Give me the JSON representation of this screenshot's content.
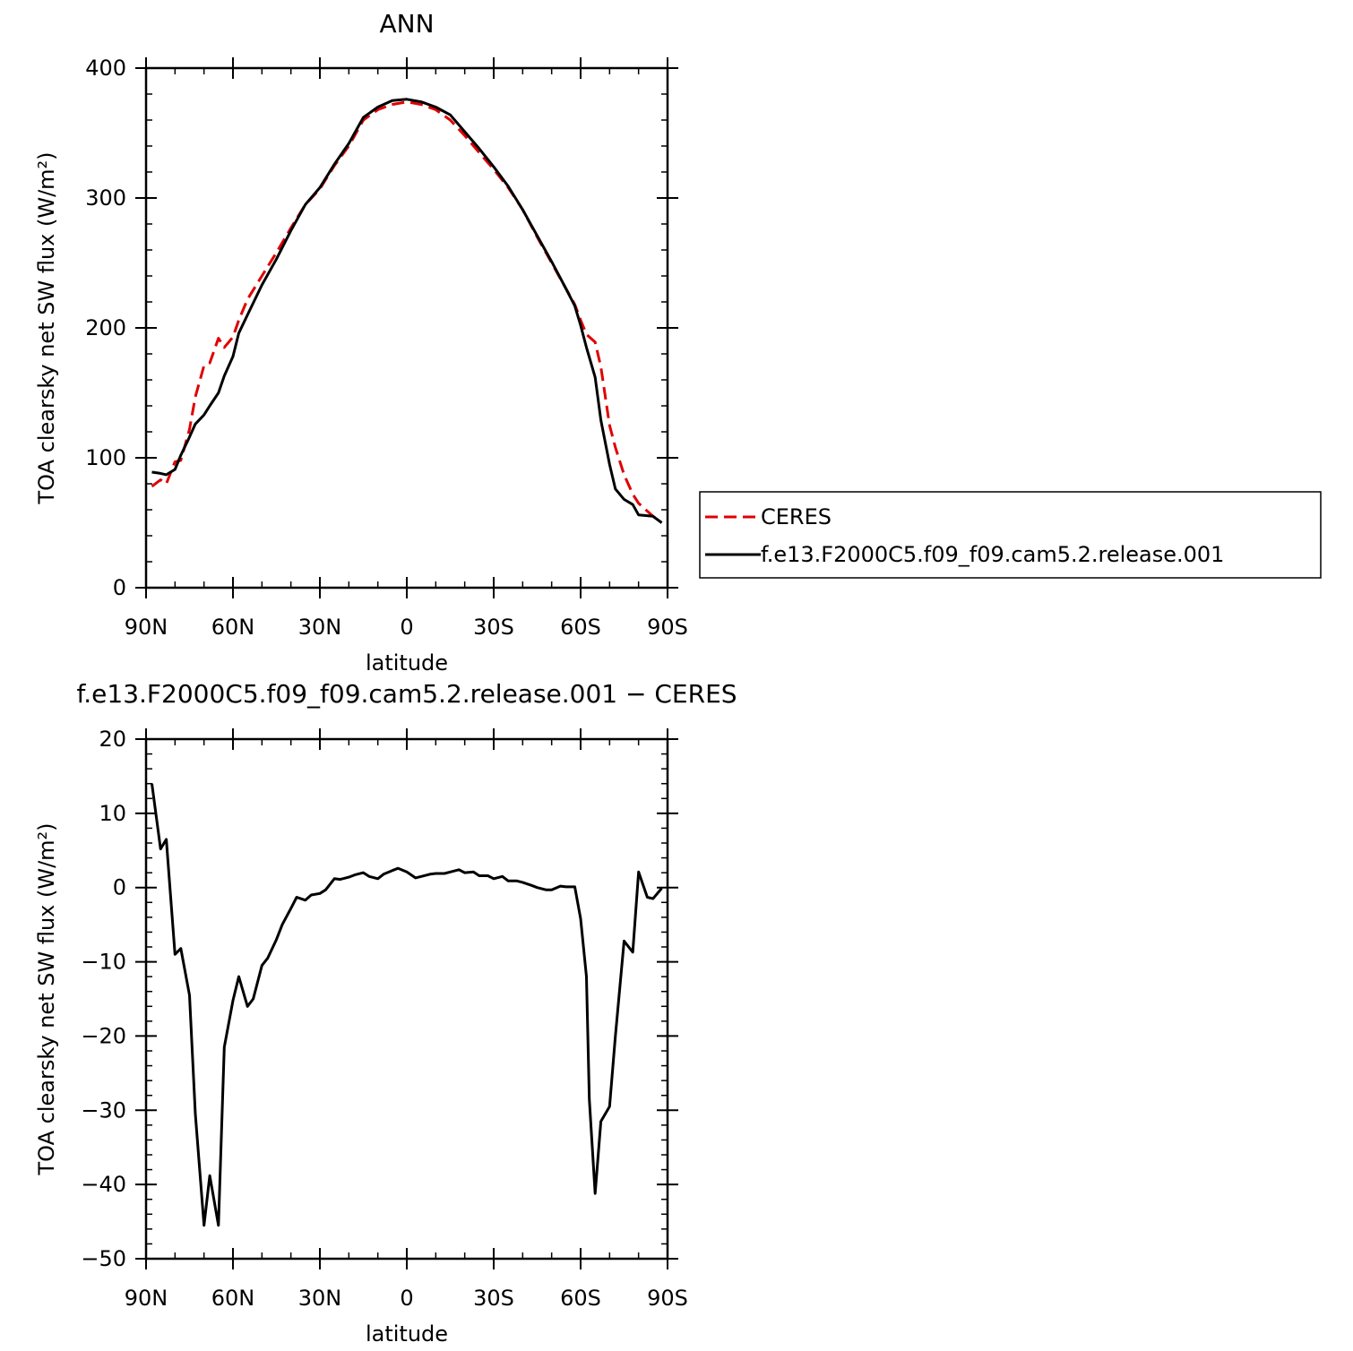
{
  "chart_data": [
    {
      "type": "line",
      "title": "ANN",
      "xlabel": "latitude",
      "ylabel": "TOA clearsky net SW flux (W/m²)",
      "ylim": [
        0,
        400
      ],
      "yticks": [
        0,
        100,
        200,
        300,
        400
      ],
      "xlim": [
        90,
        -90
      ],
      "xticks": [
        90,
        60,
        30,
        0,
        -30,
        -60,
        -90
      ],
      "xticklabels": [
        "90N",
        "60N",
        "30N",
        "0",
        "30S",
        "60S",
        "90S"
      ],
      "grid": false,
      "legend": "right",
      "series": [
        {
          "name": "CERES",
          "color": "#e00000",
          "dash": true,
          "x": [
            88,
            85,
            83,
            80,
            78,
            75,
            73,
            70,
            68,
            65,
            63,
            60,
            58,
            55,
            50,
            45,
            40,
            35,
            30,
            25,
            20,
            15,
            10,
            5,
            0,
            -5,
            -10,
            -15,
            -20,
            -25,
            -30,
            -35,
            -40,
            -45,
            -50,
            -55,
            -58,
            -60,
            -62,
            -65,
            -67,
            -70,
            -72,
            -75,
            -78,
            -80,
            -85,
            -88
          ],
          "y": [
            78,
            83,
            80,
            97,
            98,
            122,
            147,
            171,
            173,
            192,
            185,
            193,
            206,
            222,
            240,
            258,
            277,
            295,
            307,
            325,
            340,
            360,
            368,
            372,
            374,
            372,
            368,
            360,
            348,
            335,
            322,
            308,
            291,
            270,
            250,
            230,
            218,
            206,
            195,
            189,
            170,
            125,
            108,
            87,
            72,
            65,
            55,
            50
          ]
        },
        {
          "name": "f.e13.F2000C5.f09_f09.cam5.2.release.001",
          "color": "#000000",
          "dash": false,
          "x": [
            88,
            85,
            83,
            80,
            78,
            75,
            73,
            70,
            68,
            65,
            63,
            60,
            58,
            55,
            50,
            45,
            40,
            35,
            30,
            25,
            20,
            15,
            10,
            5,
            0,
            -5,
            -10,
            -15,
            -20,
            -25,
            -30,
            -35,
            -40,
            -45,
            -50,
            -55,
            -58,
            -60,
            -62,
            -65,
            -67,
            -70,
            -72,
            -75,
            -78,
            -80,
            -85,
            -88
          ],
          "y": [
            89,
            88,
            87,
            91,
            102,
            116,
            126,
            133,
            140,
            150,
            163,
            178,
            196,
            210,
            233,
            253,
            275,
            295,
            308,
            326,
            342,
            362,
            370,
            375,
            376,
            374,
            370,
            364,
            351,
            338,
            324,
            309,
            291,
            271,
            251,
            230,
            217,
            202,
            185,
            162,
            129,
            95,
            76,
            68,
            64,
            56,
            55,
            50
          ]
        }
      ]
    },
    {
      "type": "line",
      "title": "f.e13.F2000C5.f09_f09.cam5.2.release.001  − CERES",
      "xlabel": "latitude",
      "ylabel": "TOA clearsky net SW flux (W/m²)",
      "ylim": [
        -50,
        20
      ],
      "yticks": [
        -50,
        -40,
        -30,
        -20,
        -10,
        0,
        10,
        20
      ],
      "xlim": [
        90,
        -90
      ],
      "xticks": [
        90,
        60,
        30,
        0,
        -30,
        -60,
        -90
      ],
      "xticklabels": [
        "90N",
        "60N",
        "30N",
        "0",
        "30S",
        "60S",
        "90S"
      ],
      "grid": false,
      "series": [
        {
          "color": "#000000",
          "dash": false,
          "x": [
            88,
            85,
            83,
            80,
            78,
            75,
            73,
            70,
            68,
            65,
            63,
            60,
            58,
            55,
            53,
            50,
            48,
            45,
            43,
            40,
            38,
            35,
            33,
            30,
            28,
            25,
            23,
            20,
            18,
            15,
            13,
            10,
            8,
            5,
            3,
            0,
            -3,
            -5,
            -8,
            -10,
            -13,
            -15,
            -18,
            -20,
            -23,
            -25,
            -28,
            -30,
            -33,
            -35,
            -38,
            -40,
            -43,
            -45,
            -48,
            -50,
            -53,
            -55,
            -58,
            -60,
            -62,
            -63,
            -65,
            -67,
            -70,
            -72,
            -75,
            -78,
            -80,
            -83,
            -85,
            -88
          ],
          "y": [
            14,
            5.2,
            6.5,
            -9,
            -8.2,
            -14.5,
            -30.5,
            -45.5,
            -38.8,
            -45.5,
            -21.5,
            -15.2,
            -12,
            -16,
            -15,
            -10.5,
            -9.5,
            -7,
            -5,
            -2.8,
            -1.3,
            -1.7,
            -1.0,
            -0.8,
            -0.3,
            1.2,
            1.1,
            1.4,
            1.7,
            2.0,
            1.5,
            1.2,
            1.8,
            2.3,
            2.6,
            2.1,
            1.3,
            1.5,
            1.8,
            1.9,
            1.9,
            2.1,
            2.4,
            2.0,
            2.1,
            1.6,
            1.6,
            1.2,
            1.5,
            0.9,
            0.9,
            0.7,
            0.3,
            0.0,
            -0.3,
            -0.3,
            0.2,
            0.1,
            0.1,
            -4.2,
            -12,
            -28.5,
            -41.2,
            -31.5,
            -29.5,
            -20,
            -7.2,
            -8.7,
            2.1,
            -1.3,
            -1.5,
            -0.1
          ]
        }
      ]
    }
  ]
}
